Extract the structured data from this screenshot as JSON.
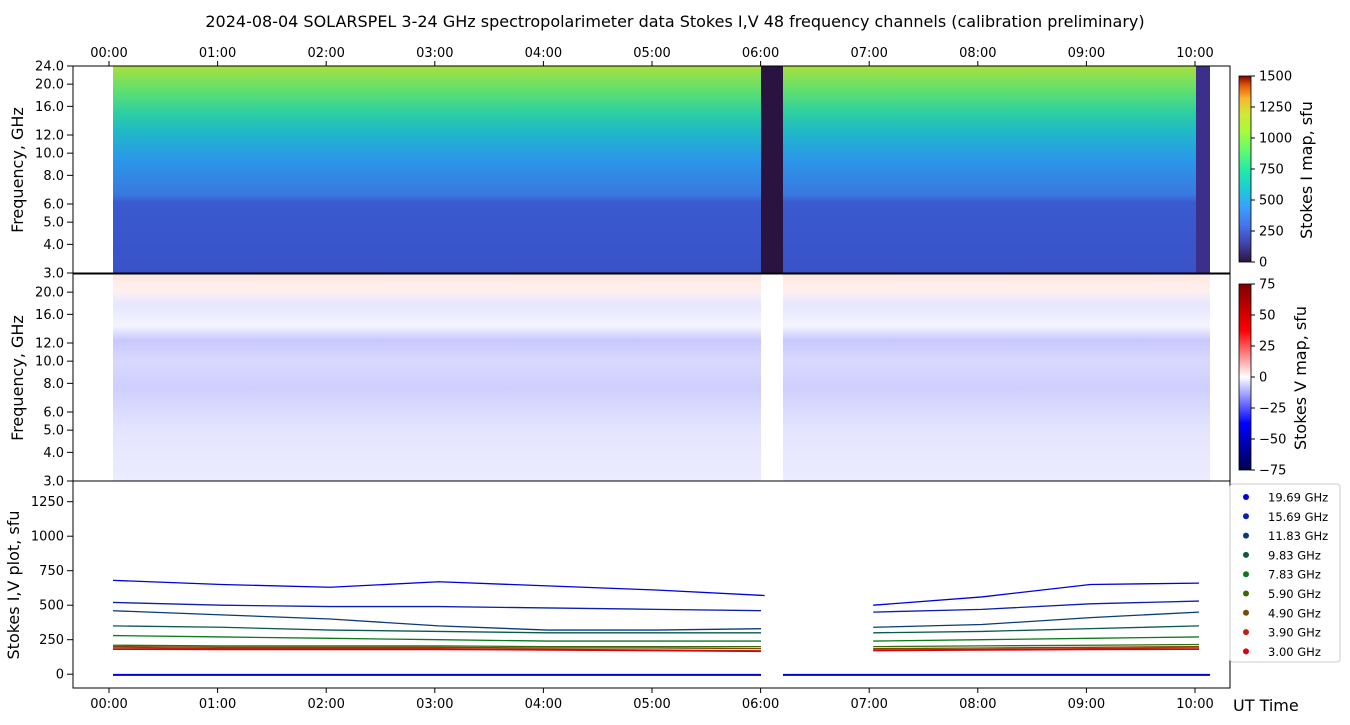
{
  "title": "2024-08-04  SOLARSPEL  3-24 GHz spectropolarimeter data   Stokes I,V   48 frequency channels   (calibration preliminary)",
  "time_ticks": [
    "00:00",
    "01:00",
    "02:00",
    "03:00",
    "04:00",
    "05:00",
    "06:00",
    "07:00",
    "08:00",
    "09:00",
    "10:00"
  ],
  "xlabel": "UT Time",
  "colors": {
    "gap": "#2a1340",
    "trace_blue": "#0000dd",
    "trace_red": "#cc1100"
  },
  "panels": {
    "stokes_i": {
      "ylabel": "Frequency, GHz",
      "yticks": [
        "24.0",
        "20.0",
        "16.0",
        "12.0",
        "10.0",
        "8.0",
        "6.0",
        "5.0",
        "4.0",
        "3.0"
      ],
      "colorbar_label": "Stokes I map, sfu",
      "colorbar_ticks": [
        "1500",
        "1250",
        "1000",
        "750",
        "500",
        "250",
        "0"
      ]
    },
    "stokes_v": {
      "ylabel": "Frequency, GHz",
      "yticks": [
        "20.0",
        "16.0",
        "12.0",
        "10.0",
        "8.0",
        "6.0",
        "5.0",
        "4.0",
        "3.0"
      ],
      "colorbar_label": "Stokes V map, sfu",
      "colorbar_ticks": [
        "75",
        "50",
        "25",
        "0",
        "−25",
        "−50",
        "−75"
      ]
    },
    "plot": {
      "ylabel": "Stokes I,V plot, sfu",
      "yticks": [
        "1250",
        "1000",
        "750",
        "500",
        "250",
        "0"
      ]
    }
  },
  "legend": [
    {
      "label": "19.69 GHz",
      "color": "#0000e0"
    },
    {
      "label": "15.69 GHz",
      "color": "#0a1fb0"
    },
    {
      "label": "11.83 GHz",
      "color": "#0a3a78"
    },
    {
      "label": "9.83 GHz",
      "color": "#0a5a4a"
    },
    {
      "label": "7.83 GHz",
      "color": "#0a7a1a"
    },
    {
      "label": "5.90 GHz",
      "color": "#3a6a05"
    },
    {
      "label": "4.90 GHz",
      "color": "#7a4a05"
    },
    {
      "label": "3.90 GHz",
      "color": "#c02010"
    },
    {
      "label": "3.00 GHz",
      "color": "#e00010"
    }
  ],
  "chart_data": {
    "type": "line",
    "title": "2024-08-04  SOLARSPEL  3-24 GHz spectropolarimeter data   Stokes I,V   48 frequency channels   (calibration preliminary)",
    "xlabel": "UT Time",
    "ylabel": "Stokes I,V plot, sfu",
    "ylim": [
      -100,
      1400
    ],
    "x": [
      "00:00",
      "01:00",
      "02:00",
      "03:00",
      "04:00",
      "05:00",
      "06:00",
      "07:00",
      "08:00",
      "09:00",
      "10:00"
    ],
    "series": [
      {
        "name": "19.69 GHz",
        "color": "#0000e0",
        "values": [
          680,
          650,
          630,
          670,
          640,
          610,
          570,
          500,
          560,
          650,
          660
        ]
      },
      {
        "name": "15.69 GHz",
        "color": "#0a1fb0",
        "values": [
          520,
          500,
          490,
          490,
          480,
          470,
          460,
          450,
          470,
          510,
          530
        ]
      },
      {
        "name": "11.83 GHz",
        "color": "#0a3a78",
        "values": [
          460,
          430,
          400,
          350,
          320,
          320,
          330,
          340,
          360,
          410,
          450
        ]
      },
      {
        "name": "9.83 GHz",
        "color": "#0a5a4a",
        "values": [
          350,
          340,
          320,
          310,
          300,
          300,
          300,
          300,
          310,
          330,
          350
        ]
      },
      {
        "name": "7.83 GHz",
        "color": "#0a7a1a",
        "values": [
          280,
          270,
          260,
          250,
          240,
          240,
          240,
          240,
          250,
          260,
          270
        ]
      },
      {
        "name": "5.90 GHz",
        "color": "#3a6a05",
        "values": [
          210,
          205,
          205,
          205,
          200,
          200,
          200,
          200,
          205,
          210,
          215
        ]
      },
      {
        "name": "4.90 GHz",
        "color": "#7a4a05",
        "values": [
          200,
          195,
          195,
          195,
          190,
          190,
          185,
          185,
          190,
          195,
          200
        ]
      },
      {
        "name": "3.90 GHz",
        "color": "#c02010",
        "values": [
          190,
          185,
          185,
          185,
          180,
          175,
          170,
          175,
          180,
          185,
          190
        ]
      },
      {
        "name": "3.00 GHz",
        "color": "#e00010",
        "values": [
          180,
          178,
          178,
          178,
          175,
          170,
          165,
          170,
          175,
          178,
          180
        ]
      }
    ]
  }
}
